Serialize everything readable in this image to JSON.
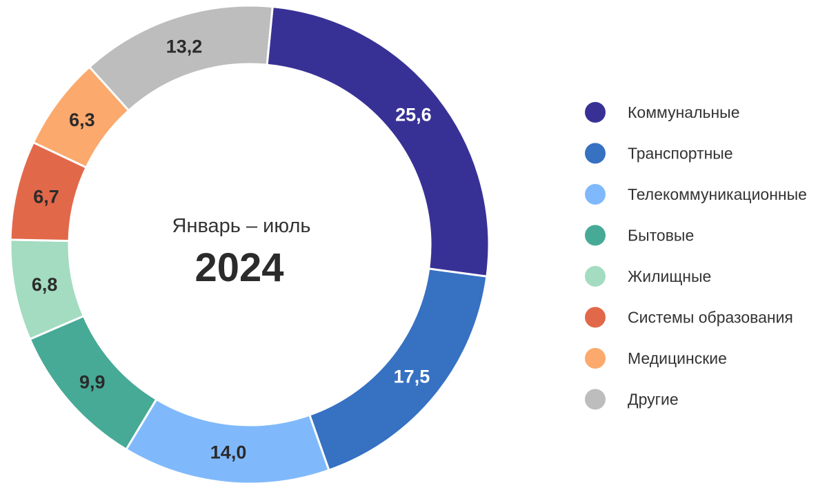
{
  "chart_data": {
    "type": "pie",
    "donut": true,
    "center": {
      "subtitle": "Январь – июль",
      "year": "2024"
    },
    "legend_position": "right",
    "slices": [
      {
        "name": "Коммунальные",
        "value": 25.6,
        "label": "25,6",
        "color": "#383195",
        "label_color": "#ffffff"
      },
      {
        "name": "Транспортные",
        "value": 17.5,
        "label": "17,5",
        "color": "#3671c2",
        "label_color": "#ffffff"
      },
      {
        "name": "Телекоммуникационные",
        "value": 14.0,
        "label": "14,0",
        "color": "#80b9fb",
        "label_color": "#2b2b2b"
      },
      {
        "name": "Бытовые",
        "value": 9.9,
        "label": "9,9",
        "color": "#46aa96",
        "label_color": "#2b2b2b"
      },
      {
        "name": "Жилищные",
        "value": 6.8,
        "label": "6,8",
        "color": "#a3dcc0",
        "label_color": "#2b2b2b"
      },
      {
        "name": "Системы образования",
        "value": 6.7,
        "label": "6,7",
        "color": "#e2684a",
        "label_color": "#2b2b2b"
      },
      {
        "name": "Медицинские",
        "value": 6.3,
        "label": "6,3",
        "color": "#fba96c",
        "label_color": "#2b2b2b"
      },
      {
        "name": "Другие",
        "value": 13.2,
        "label": "13,2",
        "color": "#bdbdbd",
        "label_color": "#2b2b2b"
      }
    ]
  }
}
